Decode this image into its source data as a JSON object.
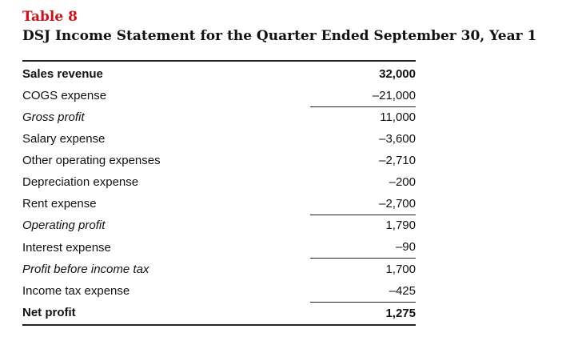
{
  "table_label": "Table 8",
  "table_title": "DSJ Income Statement for the Quarter Ended September 30, Year 1",
  "rows": [
    {
      "label": "Sales revenue",
      "value": "32,000"
    },
    {
      "label": "COGS expense",
      "value": "–21,000"
    },
    {
      "label": "Gross profit",
      "value": "11,000"
    },
    {
      "label": "Salary expense",
      "value": "–3,600"
    },
    {
      "label": "Other operating expenses",
      "value": "–2,710"
    },
    {
      "label": "Depreciation expense",
      "value": "–200"
    },
    {
      "label": "Rent expense",
      "value": "–2,700"
    },
    {
      "label": "Operating profit",
      "value": "1,790"
    },
    {
      "label": "Interest expense",
      "value": "–90"
    },
    {
      "label": "Profit before income tax",
      "value": "1,700"
    },
    {
      "label": "Income tax expense",
      "value": "–425"
    },
    {
      "label": "Net profit",
      "value": "1,275"
    }
  ]
}
